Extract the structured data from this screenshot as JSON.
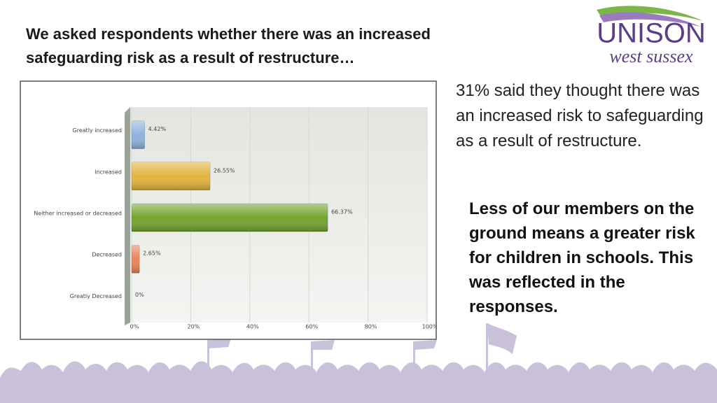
{
  "title": "We asked respondents whether there was an increased safeguarding risk as a result of restructure…",
  "logo": {
    "name": "UNISON",
    "region": "west sussex"
  },
  "summary": "31% said they thought there was an increased risk to safeguarding as a result of restructure.",
  "comment": "Less of our members on the ground means a greater risk for children in schools. This was reflected in the responses.",
  "chart_data": {
    "type": "hbar",
    "categories": [
      "Greatly increased",
      "Increased",
      "Neither increased or decreased",
      "Decreased",
      "Greatly Decreased"
    ],
    "values": [
      4.42,
      26.55,
      66.37,
      2.65,
      0
    ],
    "value_labels": [
      "4.42%",
      "26.55%",
      "66.37%",
      "2.65%",
      "0%"
    ],
    "colors": [
      "#8fb3dc",
      "#e2b43e",
      "#74a531",
      "#e8845c",
      "#2b8d9b"
    ],
    "xlim": [
      0,
      100
    ],
    "xticks": [
      {
        "value": 0,
        "label": "0%"
      },
      {
        "value": 20,
        "label": "20%"
      },
      {
        "value": 40,
        "label": "40%"
      },
      {
        "value": 60,
        "label": "60%"
      },
      {
        "value": 80,
        "label": "80%"
      },
      {
        "value": 100,
        "label": "100%"
      }
    ],
    "grid": true
  }
}
